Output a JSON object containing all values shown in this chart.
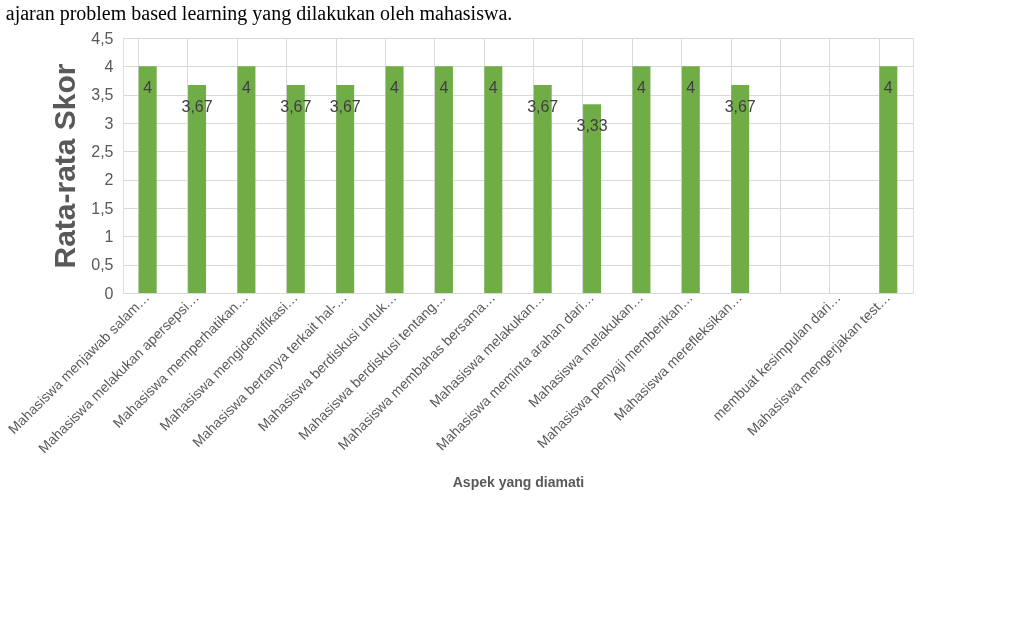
{
  "chart_data": {
    "type": "bar",
    "xlabel": "Aspek yang diamati",
    "ylabel": "Rata-rata Skor",
    "annotations": [
      "ajaran problem based learning yang dilakukan oleh mahasiswa."
    ],
    "categories": [
      "Mahasiswa menjawab salam…",
      "Mahasiswa melakukan apersepsi…",
      "Mahasiswa memperhatikan…",
      "Mahasiswa mengidentifikasi…",
      "Mahasiswa bertanya terkait hal-…",
      "Mahasiswa berdiskusi untuk…",
      "Mahasiswa berdiskusi tentang…",
      "Mahasiswa membahas bersama…",
      "Mahasiswa melakukan…",
      "Mahasiswa meminta arahan dari…",
      "Mahasiswa melakukan…",
      "Mahasiswa penyaji memberikan…",
      "Mahasiswa merefleksikan…",
      null,
      "membuat kesimpulan dari…",
      "Mahasiswa mengerjakan test…"
    ],
    "values": [
      4,
      3.67,
      4,
      3.67,
      3.67,
      4,
      4,
      4,
      3.67,
      3.33,
      4,
      4,
      3.67,
      null,
      null,
      4
    ],
    "value_labels": [
      "4",
      "3,67",
      "4",
      "3,67",
      "3,67",
      "4",
      "4",
      "4",
      "3,67",
      "3,33",
      "4",
      "4",
      "3,67",
      null,
      null,
      "4"
    ],
    "color": "#70ad47",
    "ylim": [
      0,
      4.5
    ],
    "yticks": [
      {
        "value": 0,
        "label": "0"
      },
      {
        "value": 0.5,
        "label": "0,5"
      },
      {
        "value": 1,
        "label": "1"
      },
      {
        "value": 1.5,
        "label": "1,5"
      },
      {
        "value": 2,
        "label": "2"
      },
      {
        "value": 2.5,
        "label": "2,5"
      },
      {
        "value": 3,
        "label": "3"
      },
      {
        "value": 3.5,
        "label": "3,5"
      },
      {
        "value": 4,
        "label": "4"
      },
      {
        "value": 4.5,
        "label": "4,5"
      }
    ],
    "grid": true
  }
}
